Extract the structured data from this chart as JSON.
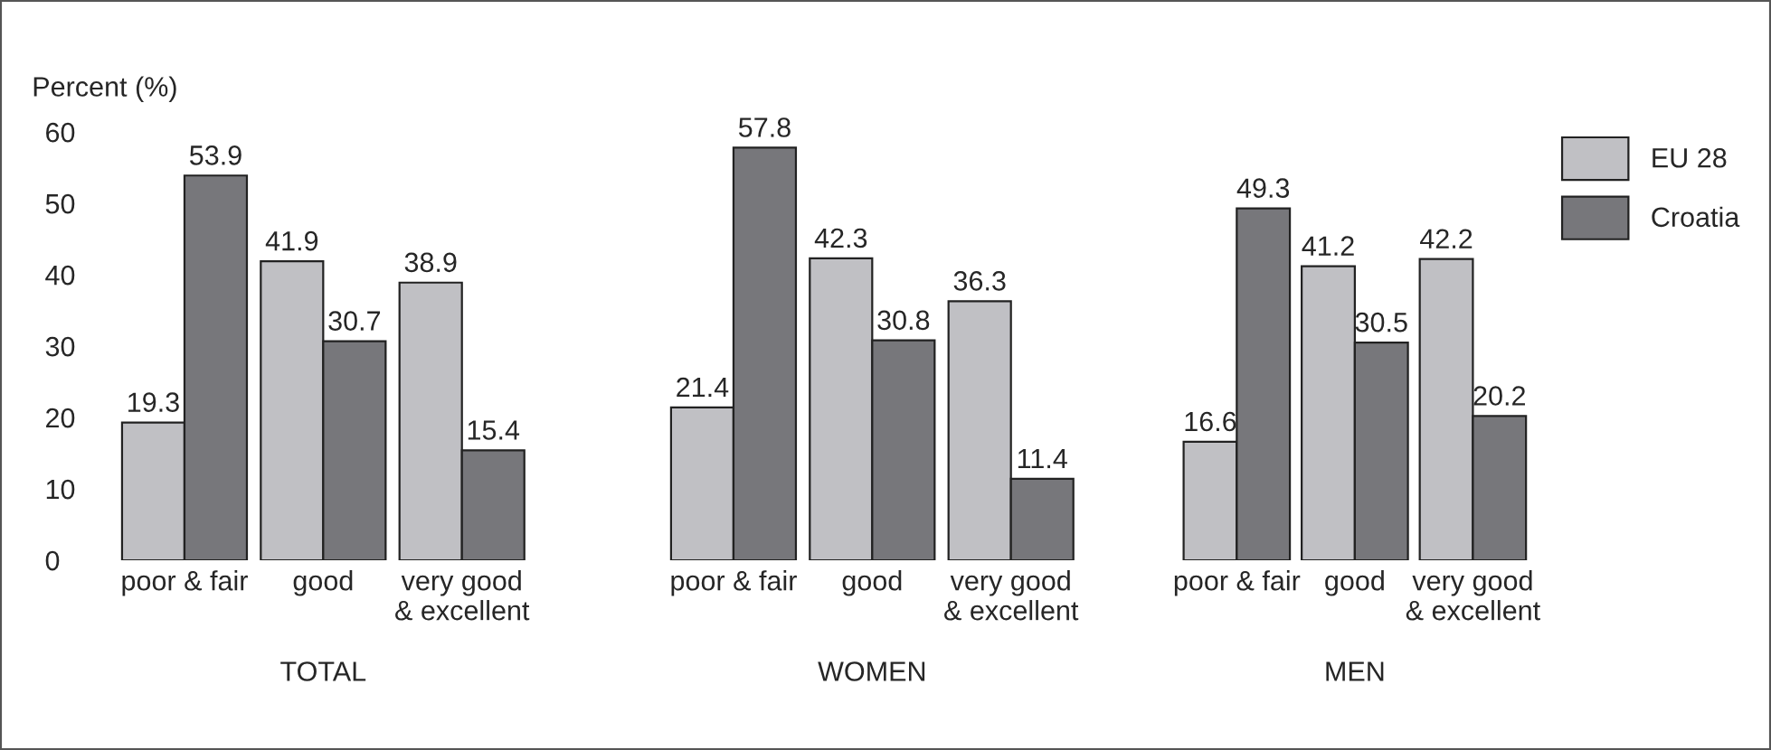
{
  "chart_data": [
    {
      "type": "bar",
      "xlabel": "TOTAL",
      "ylabel": "Percent (%)",
      "categories": [
        "poor & fair",
        "good",
        "very good\n& excellent"
      ],
      "series": [
        {
          "name": "EU 28",
          "color": "#c0c0c4",
          "values": [
            19.3,
            41.9,
            38.9
          ]
        },
        {
          "name": "Croatia",
          "color": "#77777b",
          "values": [
            53.9,
            30.7,
            15.4
          ]
        }
      ],
      "ylim": [
        0,
        60
      ],
      "yticks": [
        0,
        10,
        20,
        30,
        40,
        50,
        60
      ],
      "data_labels": true,
      "legend": "right"
    },
    {
      "type": "bar",
      "xlabel": "WOMEN",
      "categories": [
        "poor & fair",
        "good",
        "very good\n& excellent"
      ],
      "series": [
        {
          "color": "#c0c0c4",
          "values": [
            21.4,
            42.3,
            36.3
          ]
        },
        {
          "color": "#77777b",
          "values": [
            57.8,
            30.8,
            11.4
          ]
        }
      ],
      "ylim": [
        0,
        60
      ],
      "tick_labels": "x",
      "data_labels": true
    },
    {
      "type": "bar",
      "xlabel": "MEN",
      "categories": [
        "poor & fair",
        "good",
        "very good\n& excellent"
      ],
      "series": [
        {
          "color": "#c0c0c4",
          "values": [
            16.6,
            41.2,
            42.2
          ]
        },
        {
          "color": "#77777b",
          "values": [
            49.3,
            30.5,
            20.2
          ]
        }
      ],
      "ylim": [
        0,
        60
      ],
      "tick_labels": "x",
      "data_labels": true
    }
  ]
}
